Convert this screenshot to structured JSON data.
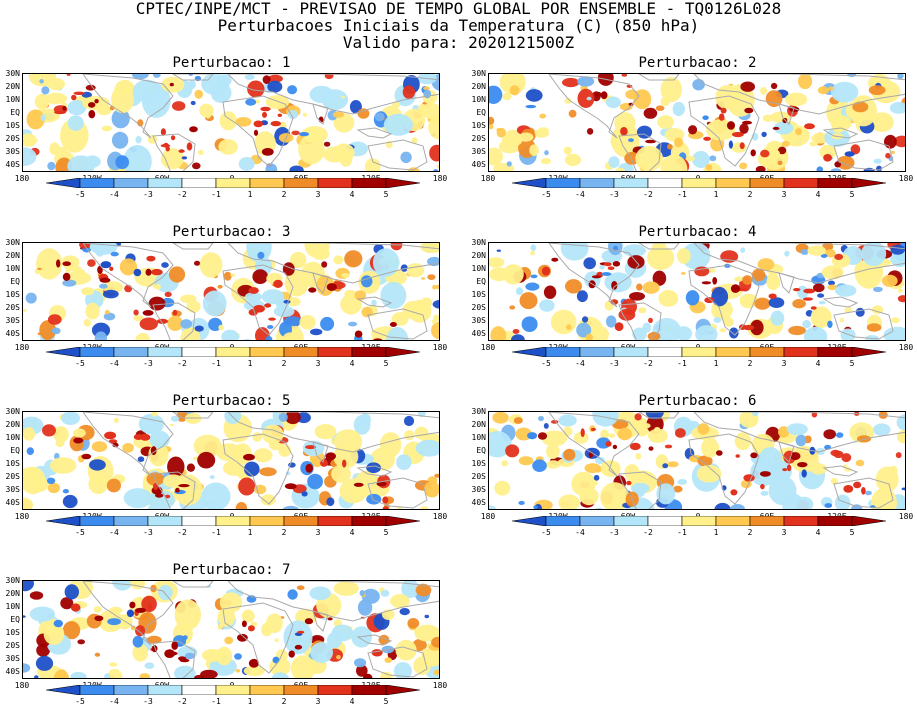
{
  "header": {
    "line1": "CPTEC/INPE/MCT - PREVISAO DE TEMPO GLOBAL POR ENSEMBLE - TQ0126L028",
    "line2": "Perturbacoes Iniciais da Temperatura (C) (850 hPa)",
    "line3": "Valido para: 2020121500Z"
  },
  "panels": [
    {
      "title": "Perturbacao: 1"
    },
    {
      "title": "Perturbacao: 2"
    },
    {
      "title": "Perturbacao: 3"
    },
    {
      "title": "Perturbacao: 4"
    },
    {
      "title": "Perturbacao: 5"
    },
    {
      "title": "Perturbacao: 6"
    },
    {
      "title": "Perturbacao: 7"
    }
  ],
  "lat_labels": [
    "30N",
    "20N",
    "10N",
    "EQ",
    "10S",
    "20S",
    "30S",
    "40S"
  ],
  "lon_labels": [
    "180",
    "120W",
    "60W",
    "0",
    "60E",
    "120E",
    "180"
  ],
  "colorbar": {
    "labels": [
      "-5",
      "-4",
      "-3",
      "-2",
      "-1",
      "1",
      "2",
      "3",
      "4",
      "5"
    ],
    "colors": [
      "#1e50c8",
      "#3c8cf0",
      "#78b4f0",
      "#b4e6fa",
      "#ffffff",
      "#fff08c",
      "#ffc850",
      "#f08c28",
      "#e1321e",
      "#a00000"
    ]
  },
  "map_colors": {
    "land_outline": "#aaaaaa",
    "warm": [
      "#fff08c",
      "#ffc850",
      "#f08c28",
      "#e1321e",
      "#a00000"
    ],
    "cold": [
      "#b4e6fa",
      "#78b4f0",
      "#3c8cf0",
      "#1e50c8"
    ]
  }
}
